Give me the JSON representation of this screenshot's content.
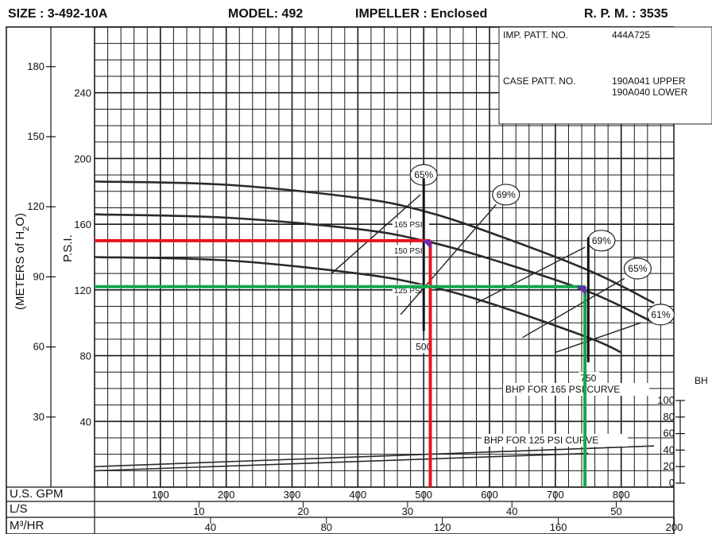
{
  "header": {
    "size": "SIZE : 3-492-10A",
    "model": "MODEL: 492",
    "impeller": "IMPELLER : Enclosed",
    "rpm": "R. P. M. : 3535"
  },
  "info_box": {
    "imp_label": "IMP. PATT. NO.",
    "imp_value": "444A725",
    "case_label": "CASE PATT. NO.",
    "case_upper": "190A041 UPPER",
    "case_lower": "190A040 LOWER"
  },
  "colors": {
    "grid": "#1a1a1a",
    "curve": "#2a2a2a",
    "red_line": "#e8141c",
    "green_line": "#12a84a",
    "marker": "#6a2cb0"
  },
  "chart_data": {
    "type": "line",
    "x_axis": {
      "label": "U.S. GPM",
      "range": [
        0,
        880
      ],
      "ticks": [
        100,
        200,
        300,
        400,
        500,
        600,
        700,
        800
      ],
      "tick_labels": [
        "100",
        "200",
        "300",
        "400",
        "500",
        "600",
        "700",
        "800"
      ]
    },
    "secondary_x_axes": [
      {
        "label": "L/S",
        "tick_labels": [
          "10",
          "20",
          "30",
          "40",
          "50"
        ],
        "ticks": [
          10,
          20,
          30,
          40,
          50
        ]
      },
      {
        "label": "M³/HR",
        "tick_labels": [
          "40",
          "80",
          "120",
          "160",
          "200"
        ],
        "ticks": [
          40,
          80,
          120,
          160,
          200
        ]
      }
    ],
    "y_axis_psi": {
      "label": "P.S.I.",
      "range": [
        0,
        280
      ],
      "ticks": [
        40,
        80,
        120,
        160,
        200,
        240
      ],
      "tick_labels": [
        "40",
        "80",
        "120",
        "160",
        "200",
        "240"
      ]
    },
    "y_axis_meters": {
      "label_prefix": "(METERS of H",
      "label_sub": "2",
      "label_suffix": "O)",
      "ticks": [
        30,
        60,
        90,
        120,
        150,
        180
      ],
      "tick_labels": [
        "30",
        "60",
        "90",
        "120",
        "150",
        "180"
      ]
    },
    "y_axis_bhp": {
      "label": "BH",
      "ticks": [
        0,
        20,
        40,
        60,
        80,
        100
      ],
      "tick_labels": [
        "0",
        "20",
        "40",
        "60",
        "80",
        "100"
      ]
    },
    "series": [
      {
        "name": "165 PSI",
        "x": [
          0,
          200,
          400,
          500,
          600,
          750,
          850
        ],
        "y": [
          186,
          184,
          176,
          168,
          155,
          132,
          112
        ]
      },
      {
        "name": "150 PSI",
        "x": [
          0,
          200,
          400,
          500,
          600,
          750,
          850
        ],
        "y": [
          166,
          164,
          157,
          150,
          139,
          119,
          100
        ]
      },
      {
        "name": "125 PSI",
        "x": [
          0,
          200,
          400,
          500,
          600,
          750,
          800
        ],
        "y": [
          140,
          138,
          130,
          123,
          112,
          91,
          82
        ]
      }
    ],
    "bhp_curves": [
      {
        "name": "BHP FOR 165 PSI CURVE",
        "x": [
          0,
          850
        ],
        "y": [
          20,
          45
        ]
      },
      {
        "name": "BHP FOR 125 PSI CURVE",
        "x": [
          0,
          750
        ],
        "y": [
          15,
          36
        ]
      }
    ],
    "efficiency_labels": [
      {
        "text": "65%",
        "x": 500,
        "y": 190
      },
      {
        "text": "69%",
        "x": 625,
        "y": 178
      },
      {
        "text": "69%",
        "x": 770,
        "y": 150
      },
      {
        "text": "65%",
        "x": 825,
        "y": 133
      },
      {
        "text": "61%",
        "x": 860,
        "y": 105
      }
    ],
    "efficiency_lines": [
      {
        "x": [
          360,
          495
        ],
        "y": [
          130,
          178
        ]
      },
      {
        "x": [
          465,
          610
        ],
        "y": [
          105,
          172
        ]
      },
      {
        "x": [
          580,
          745
        ],
        "y": [
          112,
          146
        ]
      },
      {
        "x": [
          650,
          805
        ],
        "y": [
          91,
          127
        ]
      },
      {
        "x": [
          700,
          830
        ],
        "y": [
          82,
          100
        ]
      }
    ],
    "curve_labels": [
      {
        "text": "165 PSI",
        "x": 455,
        "y": 160
      },
      {
        "text": "150 PSI",
        "x": 455,
        "y": 144
      },
      {
        "text": "125 PSI",
        "x": 455,
        "y": 120
      }
    ],
    "flow_markers": [
      {
        "text": "500",
        "x": 500,
        "y1": 95,
        "y2": 188
      },
      {
        "text": "750",
        "x": 750,
        "y1": 76,
        "y2": 152
      }
    ],
    "operating_points": [
      {
        "name": "red",
        "gpm": 510,
        "psi": 150,
        "color": "red"
      },
      {
        "name": "green",
        "gpm": 745,
        "psi": 122,
        "color": "green"
      }
    ]
  }
}
